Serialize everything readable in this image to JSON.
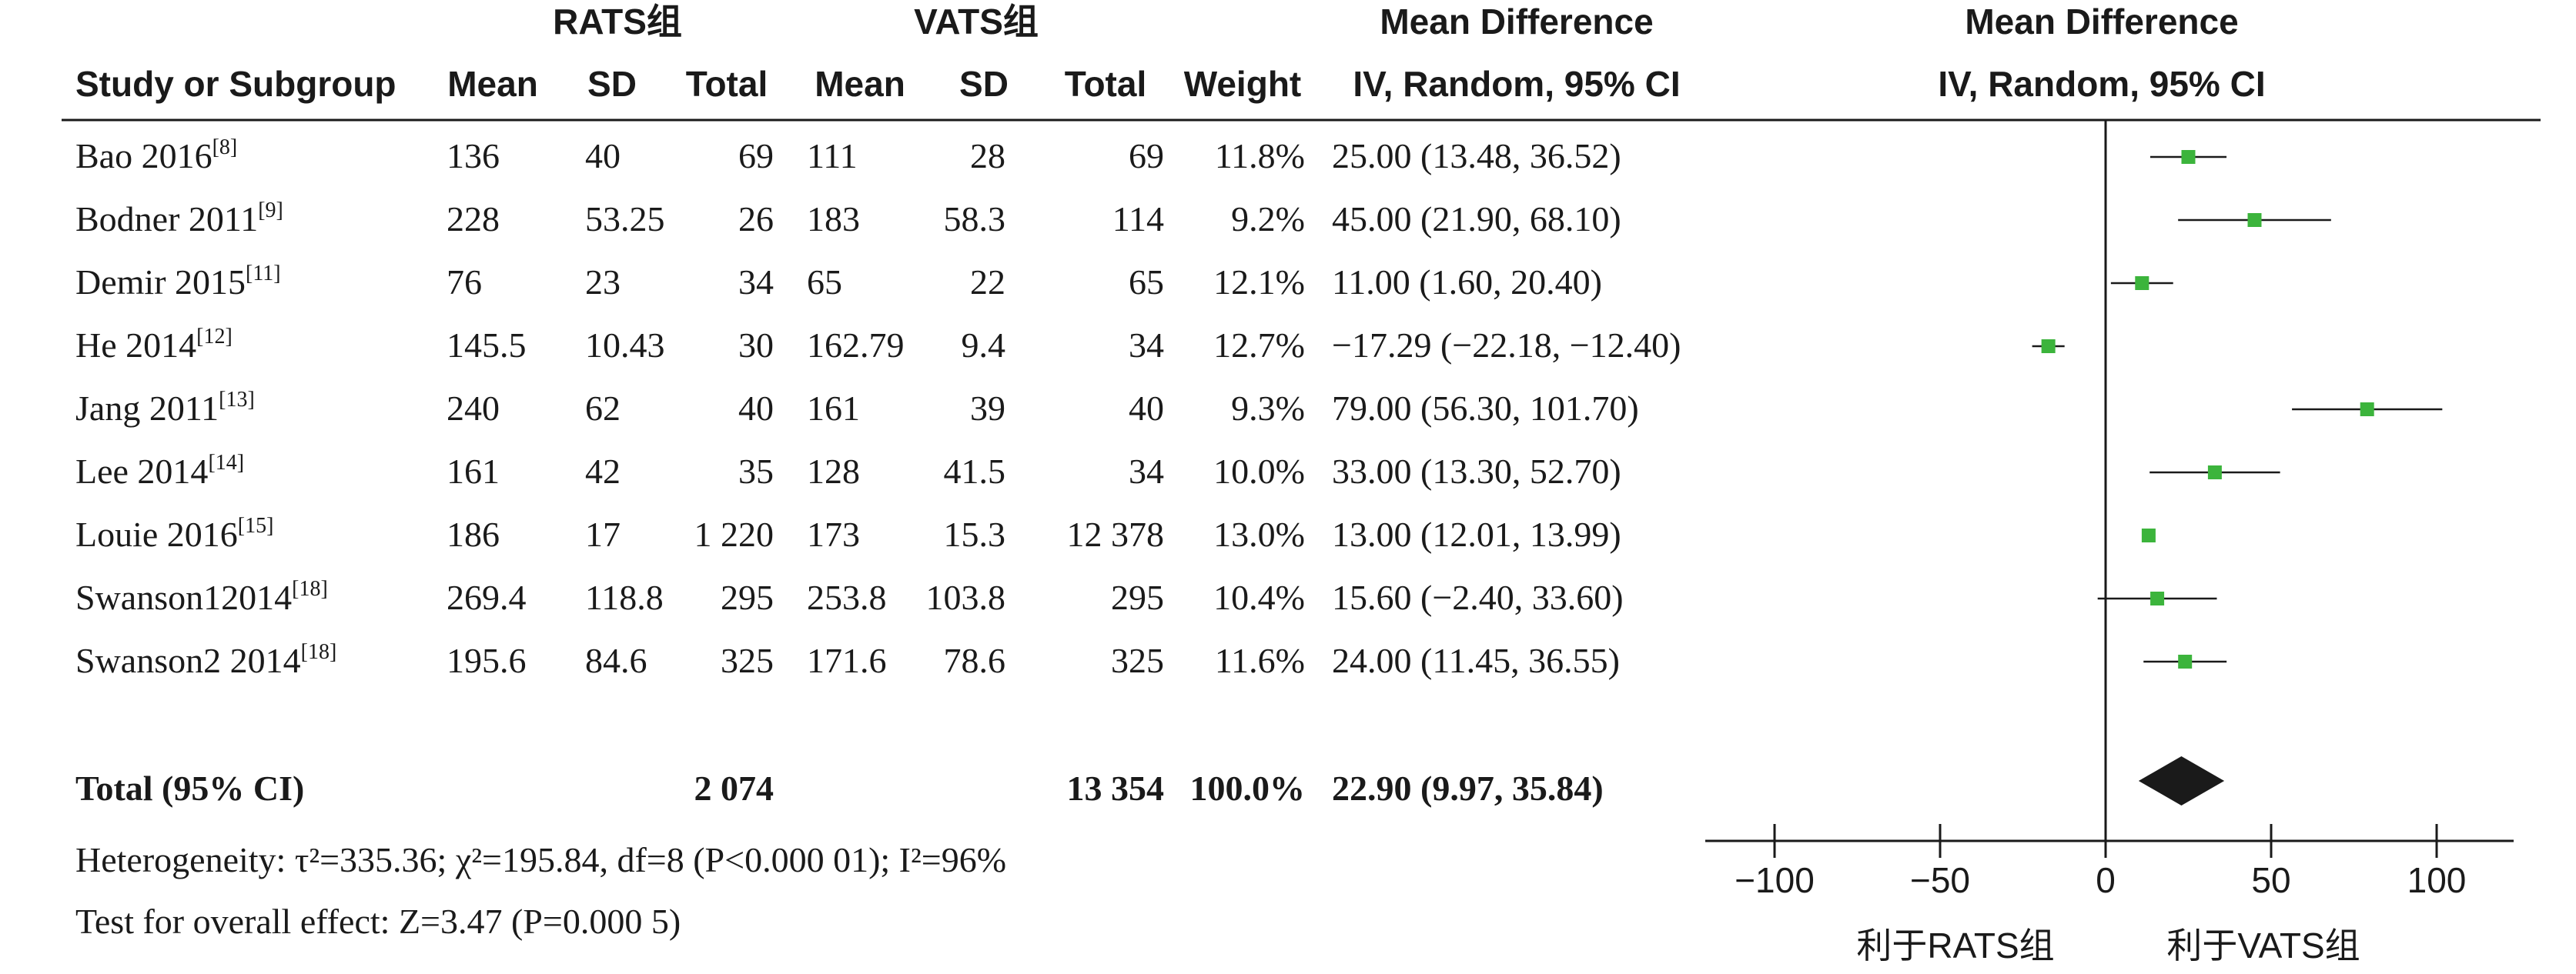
{
  "table": {
    "group_rats": "RATS组",
    "group_vats": "VATS组",
    "md_title": "Mean Difference",
    "md_method": "IV, Random, 95% CI",
    "plot_title": "Mean Difference",
    "plot_method": "IV, Random, 95% CI",
    "col_study": "Study or Subgroup",
    "col_mean1": "Mean",
    "col_sd1": "SD",
    "col_total1": "Total",
    "col_mean2": "Mean",
    "col_sd2": "SD",
    "col_total2": "Total",
    "col_weight": "Weight"
  },
  "chart_data": {
    "type": "forest",
    "title": "",
    "xlim": [
      -100,
      100
    ],
    "xticks": [
      -100,
      -50,
      0,
      50,
      100
    ],
    "tick_labels": [
      "−100",
      "−50",
      "0",
      "50",
      "100"
    ],
    "favours_left": "利于RATS组",
    "favours_right": "利于VATS组",
    "marker_color": "#3cb43c",
    "diamond_color": "#1a1a1a",
    "studies": [
      {
        "study": "Bao 2016",
        "ref": "[8]",
        "mean1": "136",
        "sd1": "40",
        "total1": "69",
        "mean2": "111",
        "sd2": "28",
        "total2": "69",
        "weight": "11.8%",
        "ci_text": "25.00 (13.48, 36.52)",
        "md": 25.0,
        "lo": 13.48,
        "hi": 36.52
      },
      {
        "study": "Bodner 2011",
        "ref": "[9]",
        "mean1": "228",
        "sd1": "53.25",
        "total1": "26",
        "mean2": "183",
        "sd2": "58.3",
        "total2": "114",
        "weight": "9.2%",
        "ci_text": "45.00 (21.90, 68.10)",
        "md": 45.0,
        "lo": 21.9,
        "hi": 68.1
      },
      {
        "study": "Demir 2015",
        "ref": "[11]",
        "mean1": "76",
        "sd1": "23",
        "total1": "34",
        "mean2": "65",
        "sd2": "22",
        "total2": "65",
        "weight": "12.1%",
        "ci_text": "11.00 (1.60, 20.40)",
        "md": 11.0,
        "lo": 1.6,
        "hi": 20.4
      },
      {
        "study": "He 2014",
        "ref": "[12]",
        "mean1": "145.5",
        "sd1": "10.43",
        "total1": "30",
        "mean2": "162.79",
        "sd2": "9.4",
        "total2": "34",
        "weight": "12.7%",
        "ci_text": "−17.29 (−22.18, −12.40)",
        "md": -17.29,
        "lo": -22.18,
        "hi": -12.4
      },
      {
        "study": "Jang 2011",
        "ref": "[13]",
        "mean1": "240",
        "sd1": "62",
        "total1": "40",
        "mean2": "161",
        "sd2": "39",
        "total2": "40",
        "weight": "9.3%",
        "ci_text": "79.00 (56.30, 101.70)",
        "md": 79.0,
        "lo": 56.3,
        "hi": 101.7
      },
      {
        "study": "Lee 2014",
        "ref": "[14]",
        "mean1": "161",
        "sd1": "42",
        "total1": "35",
        "mean2": "128",
        "sd2": "41.5",
        "total2": "34",
        "weight": "10.0%",
        "ci_text": "33.00 (13.30, 52.70)",
        "md": 33.0,
        "lo": 13.3,
        "hi": 52.7
      },
      {
        "study": "Louie 2016",
        "ref": "[15]",
        "mean1": "186",
        "sd1": "17",
        "total1": "1 220",
        "mean2": "173",
        "sd2": "15.3",
        "total2": "12 378",
        "weight": "13.0%",
        "ci_text": "13.00 (12.01, 13.99)",
        "md": 13.0,
        "lo": 12.01,
        "hi": 13.99
      },
      {
        "study": "Swanson12014",
        "ref": "[18]",
        "mean1": "269.4",
        "sd1": "118.8",
        "total1": "295",
        "mean2": "253.8",
        "sd2": "103.8",
        "total2": "295",
        "weight": "10.4%",
        "ci_text": "15.60 (−2.40, 33.60)",
        "md": 15.6,
        "lo": -2.4,
        "hi": 33.6
      },
      {
        "study": "Swanson2 2014",
        "ref": "[18]",
        "mean1": "195.6",
        "sd1": "84.6",
        "total1": "325",
        "mean2": "171.6",
        "sd2": "78.6",
        "total2": "325",
        "weight": "11.6%",
        "ci_text": "24.00 (11.45, 36.55)",
        "md": 24.0,
        "lo": 11.45,
        "hi": 36.55
      }
    ],
    "total": {
      "label": "Total (95% CI)",
      "total1": "2 074",
      "total2": "13 354",
      "weight": "100.0%",
      "ci_text": "22.90 (9.97, 35.84)",
      "md": 22.9,
      "lo": 9.97,
      "hi": 35.84
    },
    "heterogeneity": "Heterogeneity: τ²=335.36; χ²=195.84, df=8 (P<0.000 01); I²=96%",
    "overall_effect": "Test for overall effect: Z=3.47 (P=0.000 5)"
  }
}
